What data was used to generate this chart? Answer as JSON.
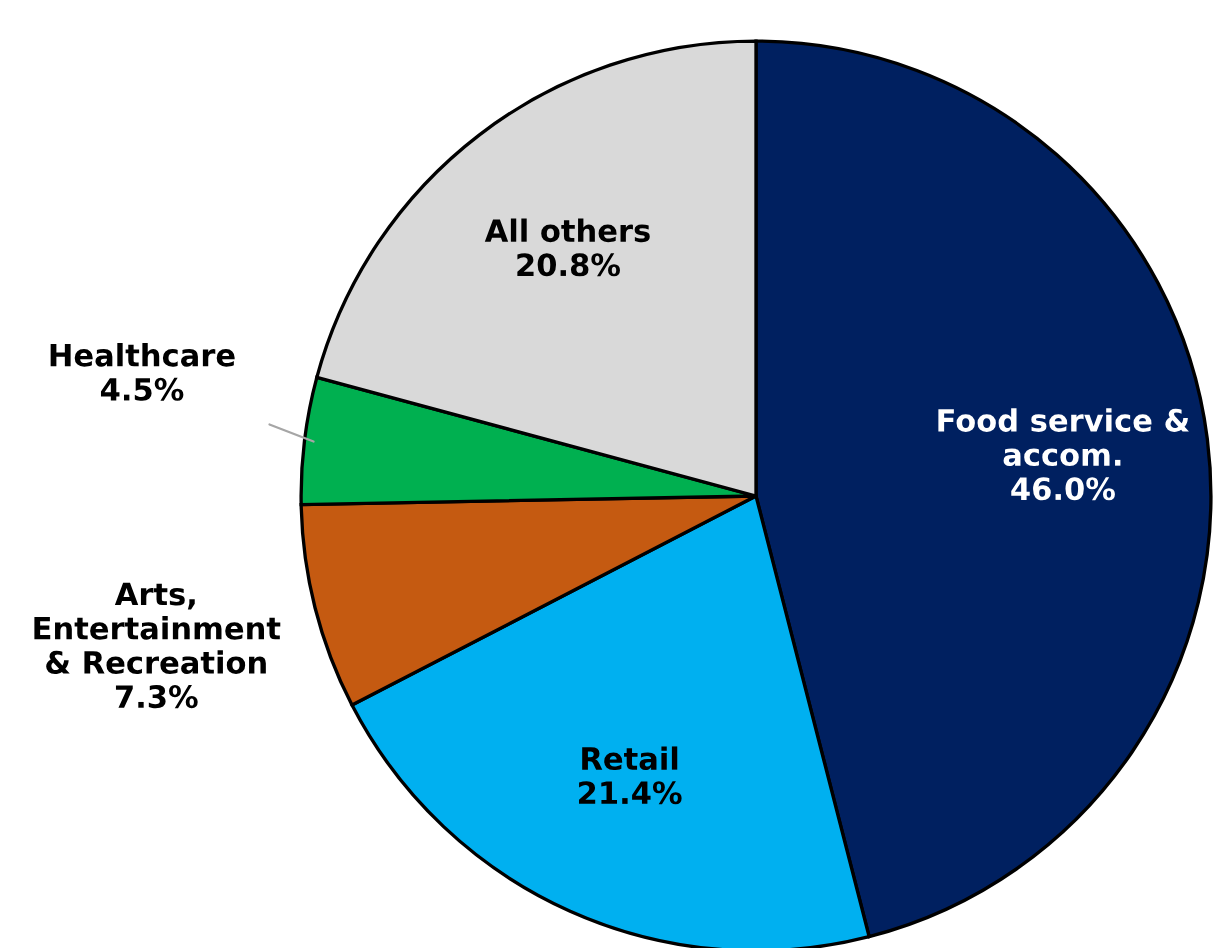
{
  "chart_data": {
    "type": "pie",
    "categories": [
      "Food service &\naccom.",
      "Retail",
      "Arts,\nEntertainment\n& Recreation",
      "Healthcare",
      "All others"
    ],
    "values": [
      46.0,
      21.4,
      7.3,
      4.5,
      20.8
    ],
    "value_labels": [
      "46.0%",
      "21.4%",
      "7.3%",
      "4.5%",
      "20.8%"
    ],
    "colors": [
      "#002060",
      "#00b0f0",
      "#c55a11",
      "#00b050",
      "#d9d9d9"
    ],
    "legend": false
  }
}
